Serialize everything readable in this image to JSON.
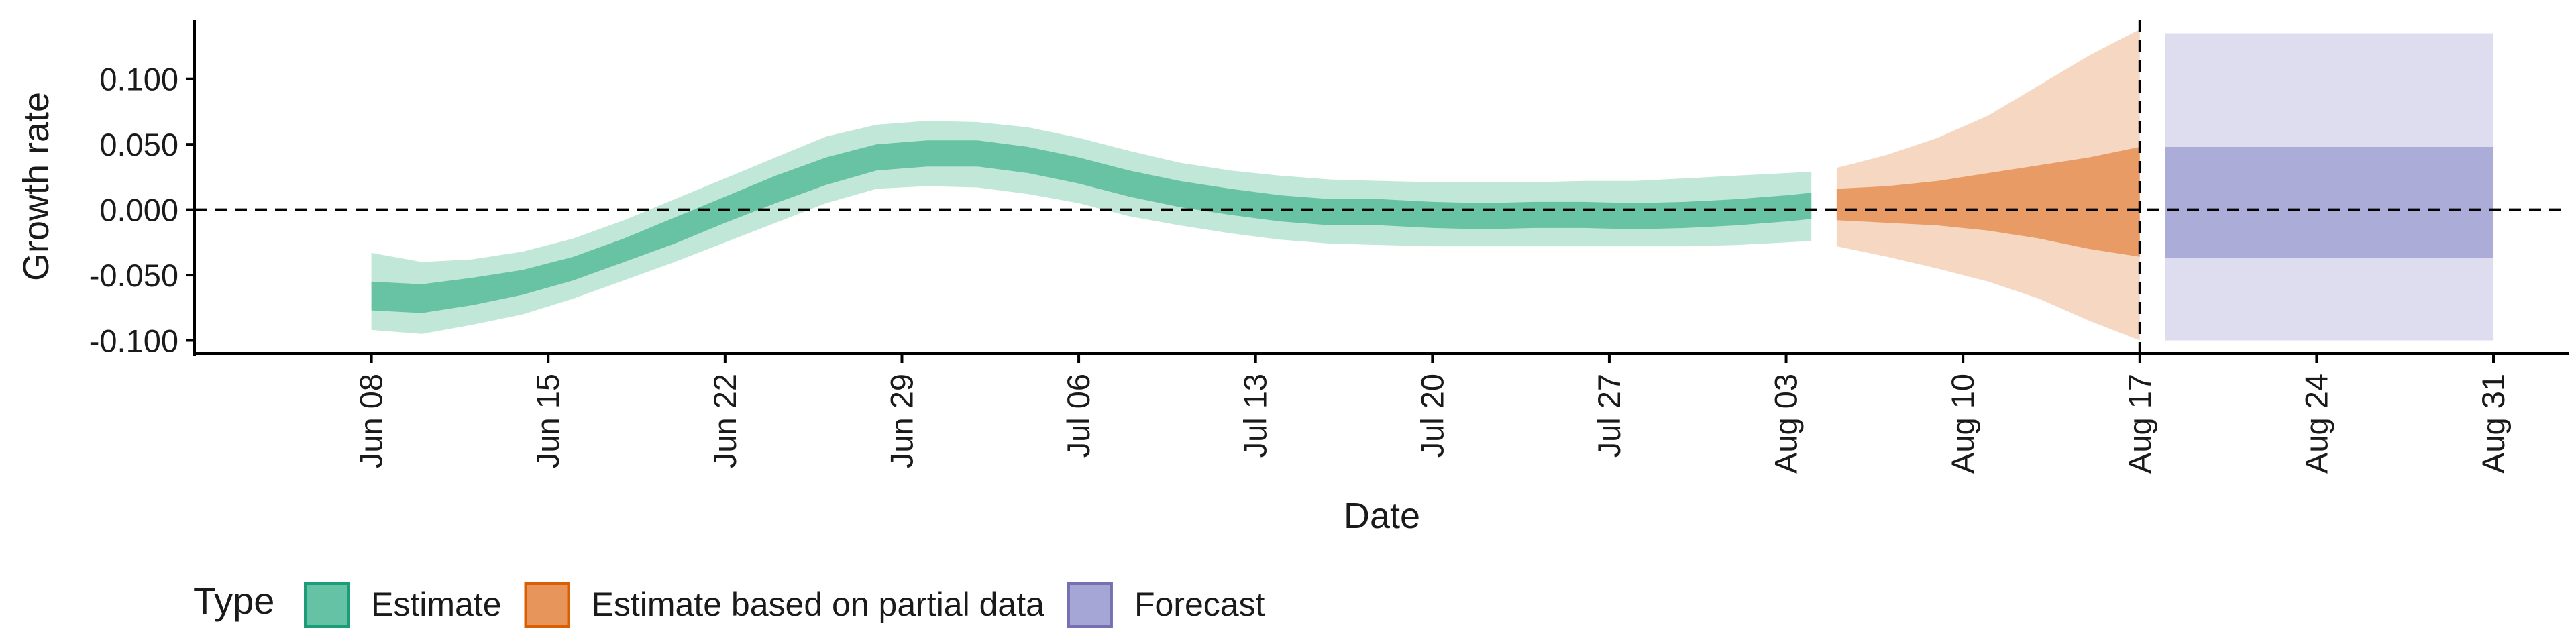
{
  "chart_data": {
    "type": "area",
    "xlabel": "Date",
    "ylabel": "Growth rate",
    "x_range": [
      "2020-06-01",
      "2020-09-03"
    ],
    "ylim": [
      -0.11,
      0.145
    ],
    "y_ticks": [
      0.1,
      0.05,
      0.0,
      -0.05,
      -0.1
    ],
    "y_tick_labels": [
      "0.100",
      "0.050",
      "0.000",
      "-0.050",
      "-0.100"
    ],
    "x_ticks": [
      "2020-06-08",
      "2020-06-15",
      "2020-06-22",
      "2020-06-29",
      "2020-07-06",
      "2020-07-13",
      "2020-07-20",
      "2020-07-27",
      "2020-08-03",
      "2020-08-10",
      "2020-08-17",
      "2020-08-24",
      "2020-08-31"
    ],
    "x_tick_labels": [
      "Jun 08",
      "Jun 15",
      "Jun 22",
      "Jun 29",
      "Jul 06",
      "Jul 13",
      "Jul 20",
      "Jul 27",
      "Aug 03",
      "Aug 10",
      "Aug 17",
      "Aug 24",
      "Aug 31"
    ],
    "reference_lines": {
      "horizontal_y": 0,
      "vertical_date": "2020-08-17"
    },
    "grid": false,
    "legend": {
      "title": "Type",
      "position": "bottom-left",
      "entries": [
        {
          "label": "Estimate",
          "color": "#66c2a5",
          "border": "#1b9e77"
        },
        {
          "label": "Estimate based on partial data",
          "color": "#e8955c",
          "border": "#d95f02"
        },
        {
          "label": "Forecast",
          "color": "#a6a6d6",
          "border": "#7570b3"
        }
      ]
    },
    "series": [
      {
        "name": "Estimate",
        "color": "#5dbf9c",
        "x": [
          "2020-06-08",
          "2020-06-10",
          "2020-06-12",
          "2020-06-14",
          "2020-06-16",
          "2020-06-18",
          "2020-06-20",
          "2020-06-22",
          "2020-06-24",
          "2020-06-26",
          "2020-06-28",
          "2020-06-30",
          "2020-07-02",
          "2020-07-04",
          "2020-07-06",
          "2020-07-08",
          "2020-07-10",
          "2020-07-12",
          "2020-07-14",
          "2020-07-16",
          "2020-07-18",
          "2020-07-20",
          "2020-07-22",
          "2020-07-24",
          "2020-07-26",
          "2020-07-28",
          "2020-07-30",
          "2020-08-01",
          "2020-08-03",
          "2020-08-04"
        ],
        "median": [
          -0.066,
          -0.068,
          -0.063,
          -0.056,
          -0.045,
          -0.031,
          -0.016,
          0.0,
          0.016,
          0.03,
          0.04,
          0.043,
          0.043,
          0.038,
          0.03,
          0.02,
          0.012,
          0.006,
          0.001,
          -0.002,
          -0.002,
          -0.004,
          -0.005,
          -0.004,
          -0.004,
          -0.005,
          -0.004,
          -0.002,
          0.001,
          0.003
        ],
        "lower_50": [
          -0.077,
          -0.079,
          -0.073,
          -0.065,
          -0.054,
          -0.04,
          -0.026,
          -0.01,
          0.005,
          0.019,
          0.03,
          0.033,
          0.033,
          0.028,
          0.02,
          0.01,
          0.002,
          -0.004,
          -0.009,
          -0.012,
          -0.012,
          -0.014,
          -0.015,
          -0.014,
          -0.014,
          -0.015,
          -0.014,
          -0.012,
          -0.009,
          -0.007
        ],
        "upper_50": [
          -0.055,
          -0.057,
          -0.052,
          -0.046,
          -0.036,
          -0.022,
          -0.006,
          0.01,
          0.026,
          0.04,
          0.05,
          0.053,
          0.053,
          0.048,
          0.04,
          0.03,
          0.022,
          0.016,
          0.011,
          0.008,
          0.008,
          0.006,
          0.005,
          0.006,
          0.006,
          0.005,
          0.006,
          0.008,
          0.011,
          0.013
        ],
        "lower_90": [
          -0.092,
          -0.095,
          -0.088,
          -0.08,
          -0.068,
          -0.054,
          -0.04,
          -0.025,
          -0.01,
          0.005,
          0.016,
          0.018,
          0.017,
          0.012,
          0.005,
          -0.005,
          -0.012,
          -0.018,
          -0.023,
          -0.026,
          -0.027,
          -0.028,
          -0.028,
          -0.028,
          -0.028,
          -0.028,
          -0.028,
          -0.027,
          -0.025,
          -0.024
        ],
        "upper_90": [
          -0.033,
          -0.04,
          -0.038,
          -0.032,
          -0.022,
          -0.008,
          0.008,
          0.024,
          0.04,
          0.056,
          0.065,
          0.068,
          0.067,
          0.063,
          0.055,
          0.045,
          0.036,
          0.03,
          0.026,
          0.023,
          0.022,
          0.021,
          0.021,
          0.021,
          0.022,
          0.022,
          0.024,
          0.026,
          0.028,
          0.029
        ]
      },
      {
        "name": "Estimate based on partial data",
        "color": "#e8955c",
        "x": [
          "2020-08-05",
          "2020-08-07",
          "2020-08-09",
          "2020-08-11",
          "2020-08-13",
          "2020-08-15",
          "2020-08-17"
        ],
        "median": [
          0.004,
          0.004,
          0.005,
          0.008,
          0.01,
          0.008,
          0.006
        ],
        "lower_50": [
          -0.008,
          -0.01,
          -0.012,
          -0.016,
          -0.022,
          -0.03,
          -0.036
        ],
        "upper_50": [
          0.016,
          0.018,
          0.022,
          0.028,
          0.034,
          0.04,
          0.048
        ],
        "lower_90": [
          -0.028,
          -0.036,
          -0.045,
          -0.055,
          -0.068,
          -0.085,
          -0.1
        ],
        "upper_90": [
          0.032,
          0.042,
          0.055,
          0.072,
          0.095,
          0.118,
          0.138
        ]
      },
      {
        "name": "Forecast",
        "color": "#a6a6d6",
        "x": [
          "2020-08-18",
          "2020-08-31"
        ],
        "lower_50": [
          -0.037,
          -0.037
        ],
        "upper_50": [
          0.048,
          0.048
        ],
        "lower_90": [
          -0.1,
          -0.1
        ],
        "upper_90": [
          0.135,
          0.135
        ]
      }
    ]
  }
}
